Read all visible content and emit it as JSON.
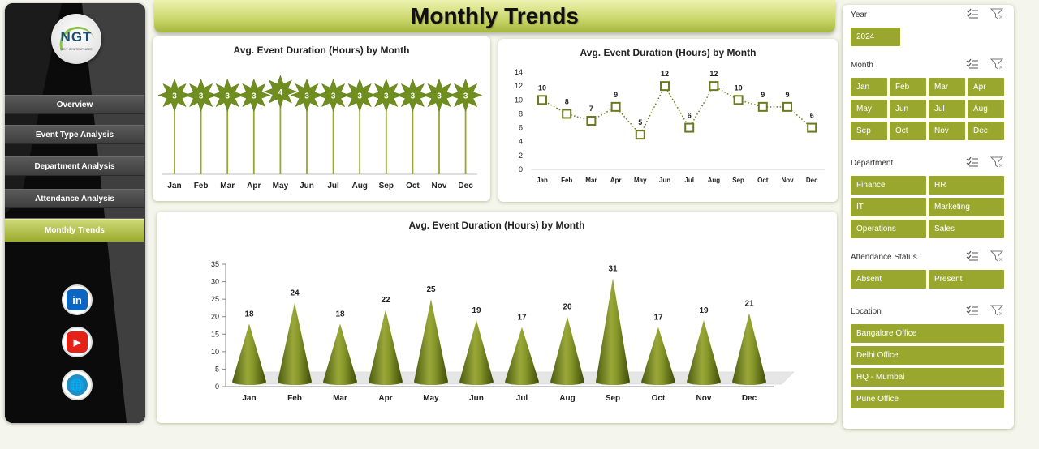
{
  "title": "Monthly Trends",
  "nav": {
    "items": [
      {
        "label": "Overview",
        "active": false
      },
      {
        "label": "Event Type Analysis",
        "active": false
      },
      {
        "label": "Department Analysis",
        "active": false
      },
      {
        "label": "Attendance Analysis",
        "active": false
      },
      {
        "label": "Monthly Trends",
        "active": true
      }
    ],
    "logo": "NGT",
    "logo_sub": "NEXT GEN TEMPLATES",
    "social": [
      {
        "icon": "linkedin-icon",
        "glyph": "in",
        "color": "#0a66c2"
      },
      {
        "icon": "youtube-icon",
        "glyph": "▶",
        "color": "#e62117"
      },
      {
        "icon": "globe-icon",
        "glyph": "🌐",
        "color": "#1e90c8"
      }
    ]
  },
  "accent": "#9aa72e",
  "slicers": {
    "year": {
      "label": "Year",
      "options": [
        "2024"
      ]
    },
    "month": {
      "label": "Month",
      "options": [
        "Jan",
        "Feb",
        "Mar",
        "Apr",
        "May",
        "Jun",
        "Jul",
        "Aug",
        "Sep",
        "Oct",
        "Nov",
        "Dec"
      ]
    },
    "department": {
      "label": "Department",
      "options": [
        "Finance",
        "HR",
        "IT",
        "Marketing",
        "Operations",
        "Sales"
      ]
    },
    "attendance": {
      "label": "Attendance Status",
      "options": [
        "Absent",
        "Present"
      ]
    },
    "location": {
      "label": "Location",
      "options": [
        "Bangalore Office",
        "Delhi Office",
        "HQ - Mumbai",
        "Pune Office"
      ]
    }
  },
  "chart_data": [
    {
      "type": "bar",
      "title": "Avg. Event Duration (Hours) by Month",
      "categories": [
        "Jan",
        "Feb",
        "Mar",
        "Apr",
        "May",
        "Jun",
        "Jul",
        "Aug",
        "Sep",
        "Oct",
        "Nov",
        "Dec"
      ],
      "values": [
        3,
        3,
        3,
        3,
        4,
        3,
        3,
        3,
        3,
        3,
        3,
        3
      ],
      "marker": "star"
    },
    {
      "type": "line",
      "title": "Avg. Event Duration (Hours) by Month",
      "categories": [
        "Jan",
        "Feb",
        "Mar",
        "Apr",
        "May",
        "Jun",
        "Jul",
        "Aug",
        "Sep",
        "Oct",
        "Nov",
        "Dec"
      ],
      "values": [
        10,
        8,
        7,
        9,
        5,
        12,
        6,
        12,
        10,
        9,
        9,
        6
      ],
      "ylim": [
        0,
        14
      ],
      "yticks": [
        0,
        2,
        4,
        6,
        8,
        10,
        12,
        14
      ]
    },
    {
      "type": "bar",
      "title": "Avg. Event Duration (Hours) by Month",
      "categories": [
        "Jan",
        "Feb",
        "Mar",
        "Apr",
        "May",
        "Jun",
        "Jul",
        "Aug",
        "Sep",
        "Oct",
        "Nov",
        "Dec"
      ],
      "values": [
        18,
        24,
        18,
        22,
        25,
        19,
        17,
        20,
        31,
        17,
        19,
        21
      ],
      "ylim": [
        0,
        35
      ],
      "yticks": [
        0,
        5,
        10,
        15,
        20,
        25,
        30,
        35
      ],
      "shape": "cone"
    }
  ]
}
